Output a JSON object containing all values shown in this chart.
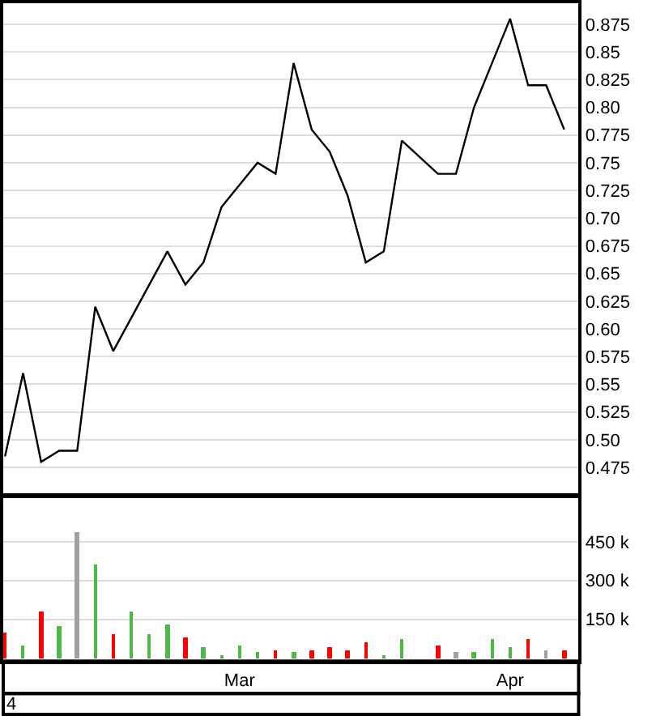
{
  "chart_data": [
    {
      "type": "line",
      "categories": [
        null,
        null,
        null,
        null,
        null,
        null,
        null,
        null,
        null,
        null,
        null,
        null,
        null,
        null,
        null,
        null,
        null,
        null,
        null,
        null,
        null,
        null,
        null,
        null,
        null,
        null,
        null,
        null,
        null,
        null,
        null,
        null
      ],
      "series": [
        {
          "color": "#000000",
          "values": [
            0.485,
            0.56,
            0.48,
            0.49,
            0.49,
            0.62,
            0.58,
            0.61,
            0.64,
            0.67,
            0.64,
            0.66,
            0.71,
            0.73,
            0.75,
            0.74,
            0.84,
            0.78,
            0.76,
            0.72,
            0.66,
            0.67,
            0.77,
            0.755,
            0.74,
            0.74,
            0.8,
            0.84,
            0.88,
            0.82,
            0.82,
            0.78
          ]
        }
      ],
      "ylim": [
        0.45,
        0.894
      ],
      "yticks": [
        0.475,
        {
          "value": 0.5,
          "label": "0.50"
        },
        0.525,
        0.55,
        0.575,
        {
          "value": 0.6,
          "label": "0.60"
        },
        0.625,
        0.65,
        0.675,
        {
          "value": 0.7,
          "label": "0.70"
        },
        0.725,
        0.75,
        0.775,
        {
          "value": 0.8,
          "label": "0.80"
        },
        0.825,
        0.85,
        0.875
      ],
      "grid": "y",
      "tick_labels": "y"
    },
    {
      "type": "bar",
      "categories": [
        null,
        null,
        null,
        null,
        null,
        null,
        null,
        null,
        null,
        null,
        null,
        null,
        null,
        "Mar",
        null,
        null,
        null,
        null,
        null,
        null,
        null,
        null,
        null,
        null,
        null,
        null,
        null,
        null,
        "Apr",
        null,
        null,
        null
      ],
      "values": [
        100000,
        50000,
        180000,
        120000,
        490000,
        360000,
        90000,
        180000,
        90000,
        130000,
        80000,
        40000,
        10000,
        50000,
        20000,
        30000,
        20000,
        30000,
        40000,
        30000,
        60000,
        10000,
        70000,
        null,
        50000,
        20000,
        20000,
        70000,
        40000,
        70000,
        30000,
        30000
      ],
      "colors": [
        "#ff0000",
        "#4cb848",
        "#ff0000",
        "#4cb848",
        "#a0a0a0",
        "#4cb848",
        "#ff0000",
        "#4cb848",
        "#4cb848",
        "#4cb848",
        "#ff0000",
        "#4cb848",
        "#4cb848",
        "#4cb848",
        "#4cb848",
        "#ff0000",
        "#4cb848",
        "#ff0000",
        "#ff0000",
        "#ff0000",
        "#ff0000",
        "#4cb848",
        "#4cb848",
        null,
        "#ff0000",
        "#a0a0a0",
        "#4cb848",
        "#4cb848",
        "#4cb848",
        "#ff0000",
        "#a0a0a0",
        "#ff0000"
      ],
      "ylim": [
        -12500,
        625000
      ],
      "yticks": [
        {
          "value": 150000,
          "label": "150 k"
        },
        {
          "value": 300000,
          "label": "300 k"
        },
        {
          "value": 450000,
          "label": "450 k"
        }
      ],
      "annotations": [
        "4"
      ],
      "grid": "y"
    }
  ]
}
